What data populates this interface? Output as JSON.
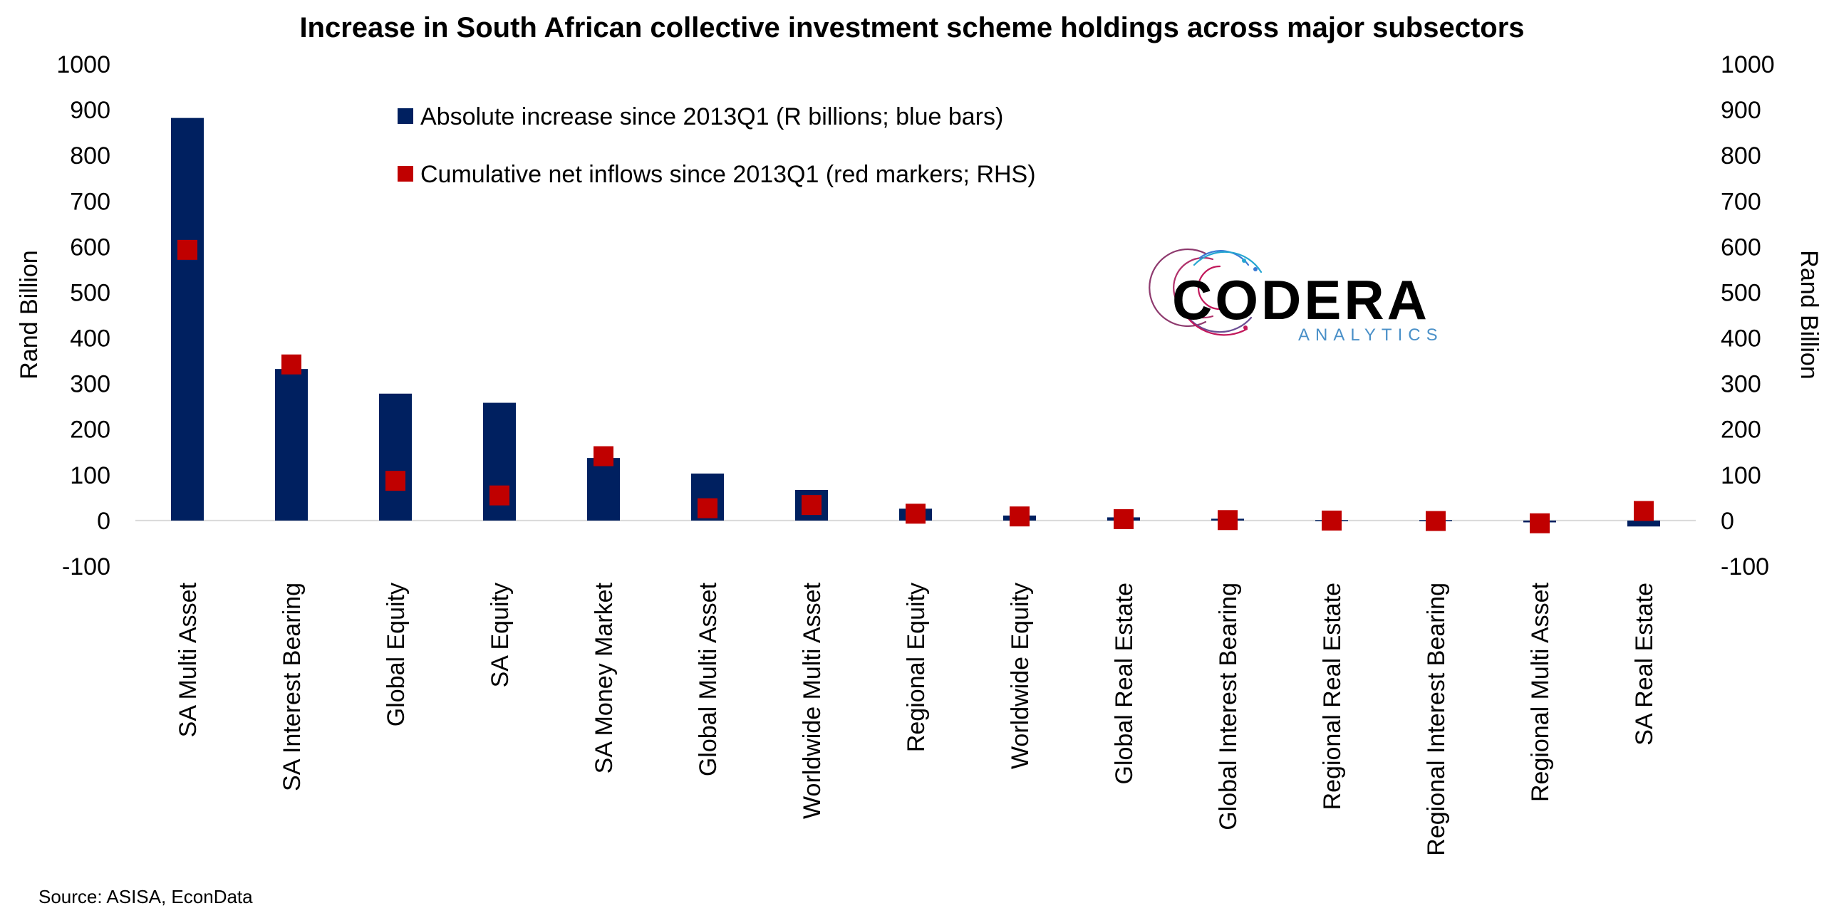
{
  "chart_data": {
    "type": "bar",
    "title": "Increase in South African collective investment scheme holdings across major subsectors",
    "ylabel": "Rand Billion",
    "ylabel_right": "Rand Billion",
    "ylim": [
      -100,
      1000
    ],
    "ylim_right": [
      -100,
      1000
    ],
    "yticks": [
      "1000",
      "900",
      "800",
      "700",
      "600",
      "500",
      "400",
      "300",
      "200",
      "100",
      "0",
      "-100"
    ],
    "grid": false,
    "legend_position": "top-center",
    "categories": [
      "SA Multi Asset",
      "SA Interest Bearing",
      "Global Equity",
      "SA Equity",
      "SA Money Market",
      "Global Multi Asset",
      "Worldwide Multi Asset",
      "Regional Equity",
      "Worldwide Equity",
      "Global Real Estate",
      "Global Interest Bearing",
      "Regional Real Estate",
      "Regional Interest Bearing",
      "Regional Multi Asset",
      "SA Real Estate"
    ],
    "series": [
      {
        "name": "Absolute increase since 2013Q1 (R billions; blue bars)",
        "kind": "bar",
        "axis": "left",
        "color": "#002060",
        "values": [
          882,
          332,
          278,
          258,
          137,
          103,
          67,
          26,
          11,
          7,
          4,
          1,
          1,
          -4,
          -13
        ]
      },
      {
        "name": "Cumulative net inflows since 2013Q1 (red markers; RHS)",
        "kind": "marker",
        "axis": "right",
        "color": "#C00000",
        "values": [
          593,
          342,
          87,
          55,
          141,
          27,
          34,
          15,
          9,
          3,
          1,
          0,
          -1,
          -6,
          21
        ]
      }
    ],
    "source": "Source: ASISA, EconData",
    "logo": {
      "wordmark": "CODERA",
      "tagline": "ANALYTICS",
      "tagline_color": "#4A90C8",
      "arc_colors": [
        "#C2185B",
        "#8E3A6E",
        "#3A7BD5",
        "#26A6D1"
      ]
    }
  }
}
